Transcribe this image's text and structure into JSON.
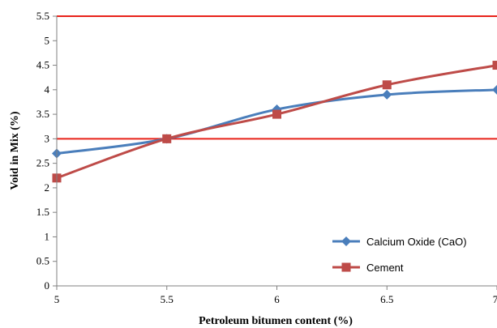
{
  "chart_data": {
    "type": "line",
    "title": "",
    "xlabel": "Petroleum bitumen content (%)",
    "ylabel": "Void in Mix (%)",
    "x": [
      5,
      5.5,
      6,
      6.5,
      7
    ],
    "x_tick_labels": [
      "5",
      "5.5",
      "6",
      "6.5",
      "7"
    ],
    "y_tick_labels": [
      "0",
      "0.5",
      "1",
      "1.5",
      "2",
      "2.5",
      "3",
      "3.5",
      "4",
      "4.5",
      "5",
      "5.5"
    ],
    "xlim": [
      5,
      7
    ],
    "ylim": [
      0,
      5.5
    ],
    "grid": false,
    "legend_position": "bottom-right",
    "limit_lines": [
      {
        "y": 3,
        "color": "#e8231a"
      },
      {
        "y": 5.5,
        "color": "#e8231a"
      }
    ],
    "series": [
      {
        "name": "Calcium Oxide (CaO)",
        "values": [
          2.7,
          3.0,
          3.6,
          3.9,
          4.0
        ],
        "color": "#4a7ebb",
        "marker": "diamond"
      },
      {
        "name": "Cement",
        "values": [
          2.2,
          3.0,
          3.5,
          4.1,
          4.5
        ],
        "color": "#be4b48",
        "marker": "square"
      }
    ]
  }
}
